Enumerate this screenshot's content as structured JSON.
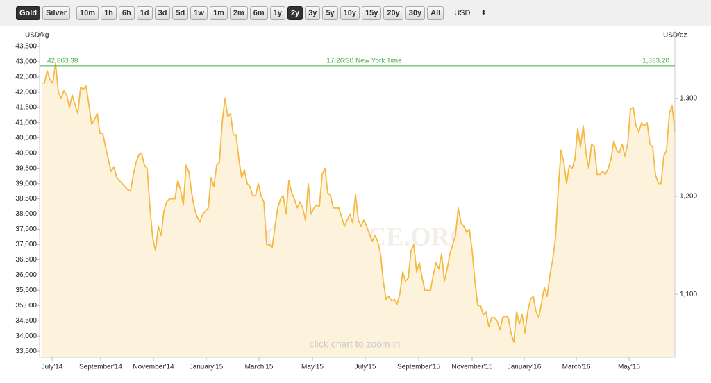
{
  "toolbar": {
    "metals": [
      "Gold",
      "Silver"
    ],
    "active_metal": "Gold",
    "ranges": [
      "10m",
      "1h",
      "6h",
      "1d",
      "3d",
      "5d",
      "1w",
      "1m",
      "2m",
      "6m",
      "1y",
      "2y",
      "3y",
      "5y",
      "10y",
      "15y",
      "20y",
      "30y",
      "All"
    ],
    "active_range": "2y",
    "currency": "USD"
  },
  "chart_data": {
    "type": "line",
    "y_label": "USD/kg",
    "y2_label": "USD/oz",
    "current": {
      "value": 42863.38,
      "label": "42,863.38",
      "time": "17:26:30 New York Time",
      "y2_label": "1,333.20",
      "color": "#3cb043"
    },
    "watermark": "GOLDPRICE.ORG",
    "hint": "click chart to zoom in",
    "color": "#f5b942",
    "fill_color": "#fdf3dc",
    "values": [
      42300,
      42300,
      42700,
      42400,
      42300,
      42950,
      42000,
      41800,
      42050,
      41900,
      41500,
      41900,
      41600,
      41300,
      42150,
      42100,
      42200,
      41600,
      40950,
      41100,
      41300,
      40650,
      40650,
      40200,
      39800,
      39400,
      39550,
      39200,
      39100,
      39000,
      38900,
      38800,
      38750,
      39300,
      39700,
      39950,
      40000,
      39600,
      39500,
      38200,
      37200,
      36800,
      37600,
      37300,
      38100,
      38400,
      38500,
      38500,
      38500,
      39100,
      38800,
      38300,
      39600,
      39400,
      38700,
      38200,
      37900,
      37750,
      38000,
      38100,
      38200,
      39200,
      38900,
      39600,
      39700,
      41000,
      41800,
      41200,
      41300,
      40600,
      40600,
      39800,
      39200,
      39450,
      39000,
      38900,
      38600,
      38600,
      39000,
      38600,
      38400,
      37000,
      37000,
      36900,
      37600,
      38200,
      38500,
      38600,
      38000,
      39100,
      38700,
      38500,
      38200,
      38400,
      38200,
      37800,
      39000,
      38000,
      38200,
      38300,
      38250,
      39300,
      39500,
      38700,
      38600,
      38200,
      38200,
      38200,
      37900,
      37600,
      37800,
      38000,
      37700,
      38650,
      37800,
      37600,
      37800,
      37600,
      37350,
      37100,
      37300,
      37100,
      36700,
      35800,
      35200,
      35300,
      35150,
      35200,
      35050,
      35400,
      36100,
      35800,
      35900,
      36800,
      37000,
      36100,
      36400,
      35900,
      35500,
      35500,
      35500,
      36000,
      36400,
      36200,
      36700,
      35800,
      36200,
      36700,
      37000,
      37300,
      38200,
      37700,
      37600,
      37400,
      37500,
      36800,
      35800,
      35000,
      35000,
      34700,
      34800,
      34300,
      34600,
      34600,
      34500,
      34200,
      34600,
      34650,
      34600,
      34100,
      33800,
      34800,
      34400,
      34700,
      34100,
      34800,
      35200,
      35300,
      34800,
      34600,
      35100,
      35600,
      35300,
      36000,
      36500,
      37200,
      38800,
      40100,
      39700,
      39000,
      39600,
      39500,
      39800,
      40800,
      40200,
      40900,
      40000,
      39500,
      40300,
      40200,
      39300,
      39300,
      39400,
      39300,
      39500,
      39800,
      40400,
      40100,
      40000,
      40300,
      39900,
      40300,
      41450,
      41500,
      40900,
      40700,
      41000,
      40900,
      41000,
      40300,
      40200,
      39300,
      39000,
      39000,
      39900,
      40100,
      41300,
      41550,
      40700
    ],
    "xlim": [
      0,
      228
    ],
    "xticks": [
      {
        "value": 3.75,
        "label": "July'14"
      },
      {
        "value": 21.25,
        "label": "September'14"
      },
      {
        "value": 40.25,
        "label": "November'14"
      },
      {
        "value": 59.25,
        "label": "January'15"
      },
      {
        "value": 78.25,
        "label": "March'15"
      },
      {
        "value": 97.5,
        "label": "May'15"
      },
      {
        "value": 116.5,
        "label": "July'15"
      },
      {
        "value": 135.75,
        "label": "September'15"
      },
      {
        "value": 155,
        "label": "November'15"
      },
      {
        "value": 173.75,
        "label": "January'16"
      },
      {
        "value": 192.5,
        "label": "March'16"
      },
      {
        "value": 211.5,
        "label": "May'16"
      }
    ],
    "ylim": [
      33300,
      44000
    ],
    "yticks": [
      {
        "value": 33500,
        "label": "33,500"
      },
      {
        "value": 34000,
        "label": "34,000"
      },
      {
        "value": 34500,
        "label": "34,500"
      },
      {
        "value": 35000,
        "label": "35,000"
      },
      {
        "value": 35500,
        "label": "35,500"
      },
      {
        "value": 36000,
        "label": "36,000"
      },
      {
        "value": 36500,
        "label": "36,500"
      },
      {
        "value": 37000,
        "label": "37,000"
      },
      {
        "value": 37500,
        "label": "37,500"
      },
      {
        "value": 38000,
        "label": "38,000"
      },
      {
        "value": 38500,
        "label": "38,500"
      },
      {
        "value": 39000,
        "label": "39,000"
      },
      {
        "value": 39500,
        "label": "39,500"
      },
      {
        "value": 40000,
        "label": "40,000"
      },
      {
        "value": 40500,
        "label": "40,500"
      },
      {
        "value": 41000,
        "label": "41,000"
      },
      {
        "value": 41500,
        "label": "41,500"
      },
      {
        "value": 42000,
        "label": "42,000"
      },
      {
        "value": 42500,
        "label": "42,500"
      },
      {
        "value": 43000,
        "label": "43,000"
      },
      {
        "value": 43500,
        "label": "43,500"
      }
    ],
    "y2lim": [
      1035.7,
      1368.5
    ],
    "y2ticks": [
      {
        "value": 1100,
        "label": "1,100"
      },
      {
        "value": 1200,
        "label": "1,200"
      },
      {
        "value": 1300,
        "label": "1,300"
      }
    ]
  }
}
